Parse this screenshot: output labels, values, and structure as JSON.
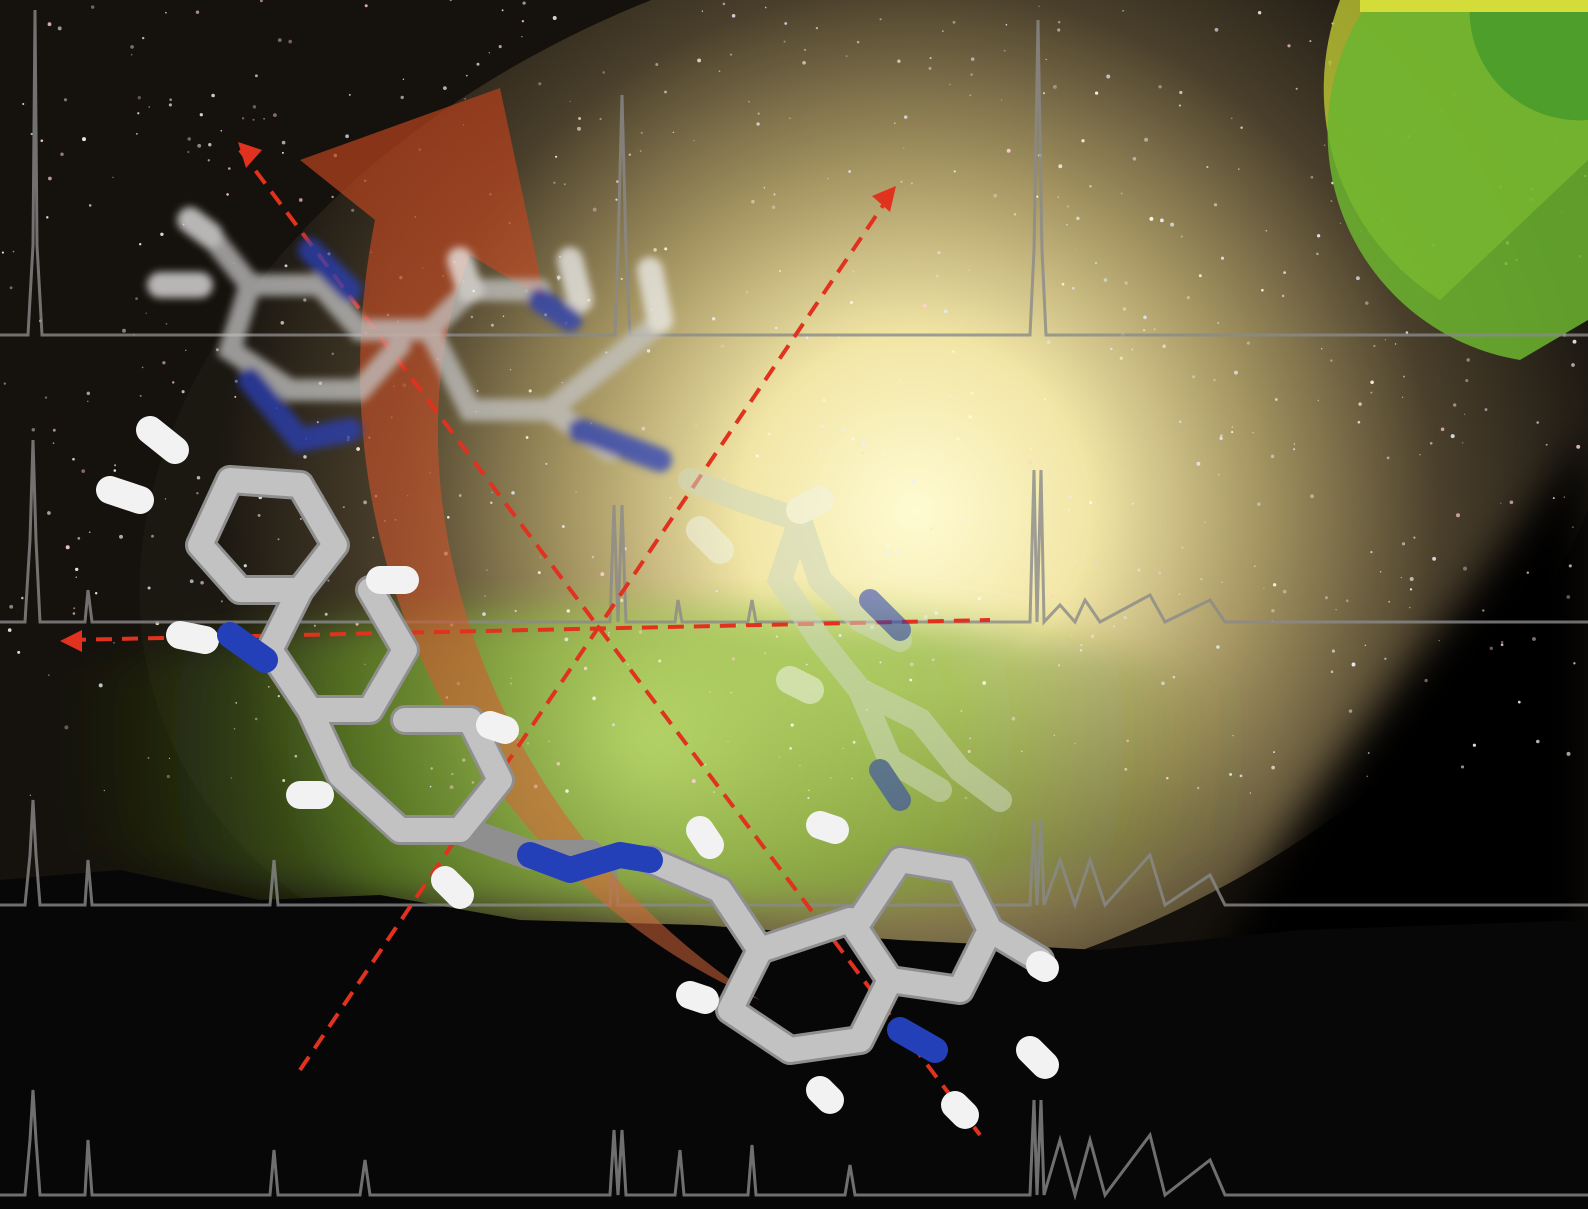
{
  "image": {
    "type": "scientific-cover-art",
    "colors": {
      "sky_top": "#2b2117",
      "glow_center": "#fffbd2",
      "aurora_green": "#6ea823",
      "ground": "#070707",
      "spectrum_line": "#8a8a8a",
      "carbon": "#b8b8b8",
      "hydrogen": "#eeeeee",
      "nitrogen": "#2a3fb8",
      "arrow_red": "#e0321e",
      "curved_arrow": "#d2542a",
      "corner_arc_yellow": "#c8d235",
      "corner_arc_green": "#5fb52c"
    },
    "icons": [
      "molecule-model-icon",
      "rotation-arrow-icon",
      "axis-arrow-icon"
    ]
  }
}
